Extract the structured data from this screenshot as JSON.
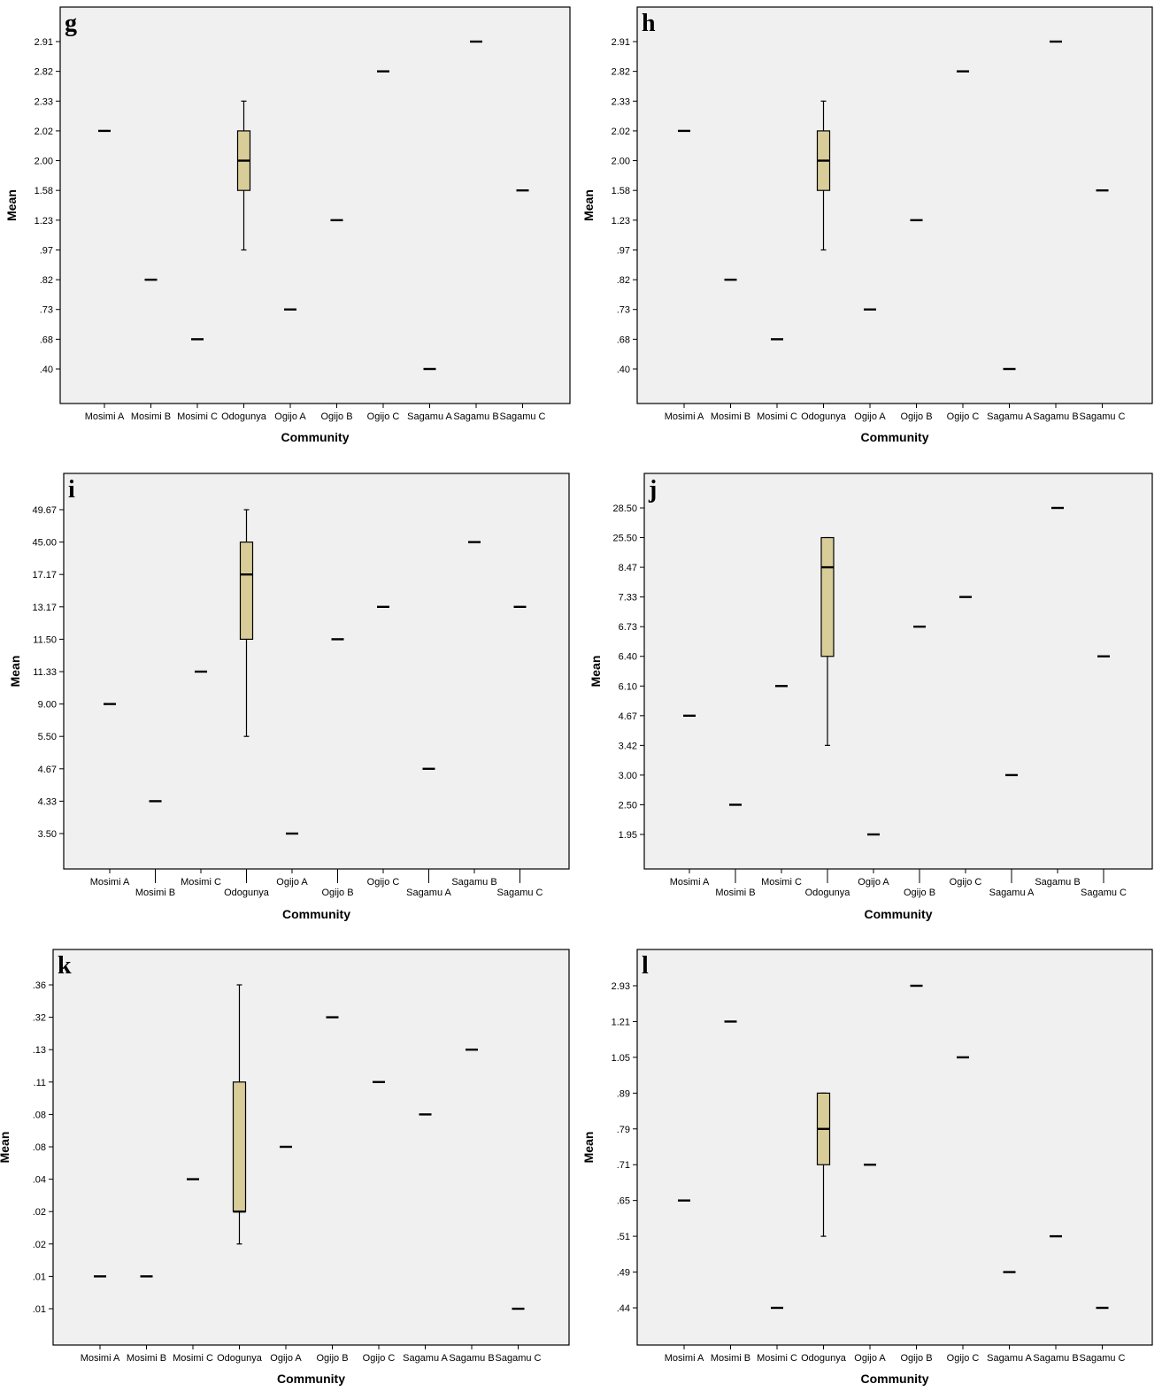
{
  "colors": {
    "plot_background": "#f0f0f0",
    "box_fill": "#d8cc98",
    "ink": "#000000"
  },
  "chart_data": [
    {
      "panel": "g",
      "type": "box",
      "xlabel": "Community",
      "ylabel": "Mean",
      "categories": [
        "Mosimi A",
        "Mosimi B",
        "Mosimi C",
        "Odogunya",
        "Ogijo A",
        "Ogijo B",
        "Ogijo C",
        "Sagamu A",
        "Sagamu B",
        "Sagamu C"
      ],
      "y_ticks": [
        ".40",
        ".68",
        ".73",
        ".82",
        ".97",
        "1.23",
        "1.58",
        "2.00",
        "2.02",
        "2.33",
        "2.82",
        "2.91"
      ],
      "values": [
        2.02,
        0.82,
        0.68,
        null,
        0.73,
        1.23,
        2.82,
        0.4,
        2.91,
        1.58
      ],
      "box": {
        "category": "Odogunya",
        "min": 0.97,
        "q1": 1.58,
        "median": 2.0,
        "q3": 2.02,
        "max": 2.33
      },
      "grid": false
    },
    {
      "panel": "h",
      "type": "box",
      "xlabel": "Community",
      "ylabel": "Mean",
      "categories": [
        "Mosimi A",
        "Mosimi B",
        "Mosimi C",
        "Odogunya",
        "Ogijo A",
        "Ogijo B",
        "Ogijo C",
        "Sagamu A",
        "Sagamu B",
        "Sagamu C"
      ],
      "y_ticks": [
        ".40",
        ".68",
        ".73",
        ".82",
        ".97",
        "1.23",
        "1.58",
        "2.00",
        "2.02",
        "2.33",
        "2.82",
        "2.91"
      ],
      "values": [
        2.02,
        0.82,
        0.68,
        null,
        0.73,
        1.23,
        2.82,
        0.4,
        2.91,
        1.58
      ],
      "box": {
        "category": "Odogunya",
        "min": 0.97,
        "q1": 1.58,
        "median": 2.0,
        "q3": 2.02,
        "max": 2.33
      },
      "grid": false
    },
    {
      "panel": "i",
      "type": "box",
      "xlabel": "Community",
      "ylabel": "Mean",
      "stagger_labels": true,
      "categories": [
        "Mosimi A",
        "Mosimi B",
        "Mosimi C",
        "Odogunya",
        "Ogijo A",
        "Ogijo B",
        "Ogijo C",
        "Sagamu A",
        "Sagamu B",
        "Sagamu C"
      ],
      "y_ticks": [
        "3.50",
        "4.33",
        "4.67",
        "5.50",
        "9.00",
        "11.33",
        "11.50",
        "13.17",
        "17.17",
        "45.00",
        "49.67"
      ],
      "values": [
        9.0,
        4.33,
        11.33,
        null,
        3.5,
        11.5,
        13.17,
        4.67,
        45.0,
        13.17
      ],
      "box": {
        "category": "Odogunya",
        "min": 5.5,
        "q1": 11.5,
        "median": 17.17,
        "q3": 45.0,
        "max": 49.67
      },
      "grid": false
    },
    {
      "panel": "j",
      "type": "box",
      "xlabel": "Community",
      "ylabel": "Mean",
      "stagger_labels": true,
      "categories": [
        "Mosimi A",
        "Mosimi B",
        "Mosimi C",
        "Odogunya",
        "Ogijo A",
        "Ogijo B",
        "Ogijo C",
        "Sagamu A",
        "Sagamu B",
        "Sagamu C"
      ],
      "y_ticks": [
        "1.95",
        "2.50",
        "3.00",
        "3.42",
        "4.67",
        "6.10",
        "6.40",
        "6.73",
        "7.33",
        "8.47",
        "25.50",
        "28.50"
      ],
      "values": [
        4.67,
        2.5,
        6.1,
        null,
        1.95,
        6.73,
        7.33,
        3.0,
        28.5,
        6.4
      ],
      "box": {
        "category": "Odogunya",
        "min": 3.42,
        "q1": 6.4,
        "median": 8.47,
        "q3": 25.5,
        "max": 25.5
      },
      "grid": false
    },
    {
      "panel": "k",
      "type": "box",
      "xlabel": "Community",
      "ylabel": "Mean",
      "categories": [
        "Mosimi A",
        "Mosimi B",
        "Mosimi C",
        "Odogunya",
        "Ogijo A",
        "Ogijo B",
        "Ogijo C",
        "Sagamu A",
        "Sagamu B",
        "Sagamu C"
      ],
      "y_ticks": [
        ".01",
        ".01",
        ".02",
        ".02",
        ".04",
        ".08",
        ".08",
        ".11",
        ".13",
        ".32",
        ".36"
      ],
      "values": [
        0.01,
        0.01,
        0.04,
        null,
        0.08,
        0.32,
        0.11,
        0.08,
        0.13,
        0.01
      ],
      "value_tick_index": [
        1,
        1,
        4,
        null,
        5,
        9,
        7,
        6,
        8,
        0
      ],
      "box": {
        "category": "Odogunya",
        "min": 0.02,
        "q1": 0.02,
        "median": 0.02,
        "q3": 0.11,
        "max": 0.36,
        "tick_index": {
          "min": 2,
          "q1": 3,
          "median": 3,
          "q3": 7,
          "max": 10
        }
      },
      "grid": false
    },
    {
      "panel": "l",
      "type": "box",
      "xlabel": "Community",
      "ylabel": "Mean",
      "categories": [
        "Mosimi A",
        "Mosimi B",
        "Mosimi C",
        "Odogunya",
        "Ogijo A",
        "Ogijo B",
        "Ogijo C",
        "Sagamu A",
        "Sagamu B",
        "Sagamu C"
      ],
      "y_ticks": [
        ".44",
        ".49",
        ".51",
        ".65",
        ".71",
        ".79",
        ".89",
        "1.05",
        "1.21",
        "2.93"
      ],
      "values": [
        0.65,
        1.21,
        0.44,
        null,
        0.71,
        2.93,
        1.05,
        0.49,
        0.51,
        0.44
      ],
      "box": {
        "category": "Odogunya",
        "min": 0.51,
        "q1": 0.71,
        "median": 0.79,
        "q3": 0.89,
        "max": 0.89
      },
      "grid": false
    }
  ]
}
